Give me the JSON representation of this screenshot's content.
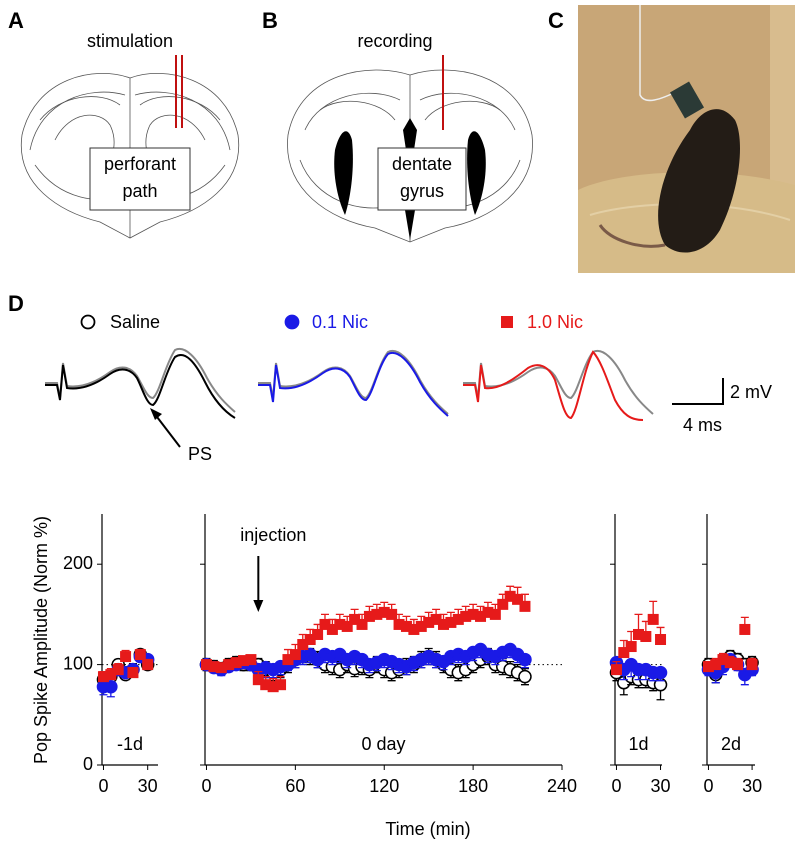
{
  "panels": {
    "a": {
      "letter": "A",
      "label": "stimulation",
      "box": [
        "perforant",
        "path"
      ]
    },
    "b": {
      "letter": "B",
      "label": "recording",
      "box": [
        "dentate",
        "gyrus"
      ]
    },
    "c": {
      "letter": "C"
    },
    "d": {
      "letter": "D",
      "trace_label": "PS",
      "scale_y": "2 mV",
      "scale_x": "4 ms"
    }
  },
  "figure": {
    "ylabel": "Pop Spike Amplitude (Norm %)",
    "xlabel": "Time (min)"
  },
  "chart_data": [
    {
      "type": "scatter",
      "label": "-1d",
      "xlim": [
        -1,
        37
      ],
      "xticks": [
        0,
        30
      ],
      "ylim": [
        0,
        250
      ],
      "yticks": [
        0,
        100,
        200
      ],
      "ref_line": 100,
      "x": [
        0,
        5,
        10,
        15,
        20,
        25,
        30
      ],
      "series": [
        {
          "name": "Saline",
          "color": "#000000",
          "marker": "circle-open",
          "error_dir": "both",
          "values": [
            85,
            88,
            100,
            90,
            95,
            110,
            100
          ],
          "errors": [
            6,
            6,
            5,
            5,
            6,
            5,
            5
          ]
        },
        {
          "name": "0.1 Nic",
          "color": "#1a1ae6",
          "marker": "circle",
          "error_dir": "down",
          "values": [
            78,
            78,
            95,
            92,
            95,
            108,
            105
          ],
          "errors": [
            8,
            10,
            6,
            5,
            6,
            5,
            5
          ]
        },
        {
          "name": "1.0 Nic",
          "color": "#e61a1a",
          "marker": "square",
          "error_dir": "up",
          "values": [
            88,
            90,
            95,
            108,
            92,
            110,
            100
          ],
          "errors": [
            5,
            6,
            6,
            6,
            5,
            5,
            5
          ]
        }
      ]
    },
    {
      "type": "scatter",
      "label": "0 day",
      "xlim": [
        -1,
        240
      ],
      "xticks": [
        0,
        60,
        120,
        180,
        240
      ],
      "ylim": [
        0,
        250
      ],
      "ref_line": 100,
      "annotation": {
        "text": "injection",
        "x": 35
      },
      "x": [
        0,
        5,
        10,
        15,
        20,
        25,
        30,
        35,
        40,
        45,
        50,
        55,
        60,
        65,
        70,
        75,
        80,
        85,
        90,
        95,
        100,
        105,
        110,
        115,
        120,
        125,
        130,
        135,
        140,
        145,
        150,
        155,
        160,
        165,
        170,
        175,
        180,
        185,
        190,
        195,
        200,
        205,
        210,
        215
      ],
      "series": [
        {
          "name": "Saline",
          "color": "#000000",
          "marker": "circle-open",
          "error_dir": "both",
          "values": [
            100,
            98,
            96,
            100,
            102,
            100,
            100,
            100,
            95,
            92,
            95,
            100,
            105,
            110,
            108,
            105,
            100,
            98,
            95,
            100,
            96,
            98,
            95,
            100,
            95,
            92,
            95,
            98,
            100,
            105,
            108,
            105,
            100,
            95,
            92,
            95,
            100,
            105,
            108,
            100,
            98,
            95,
            92,
            88
          ],
          "errors": [
            6,
            6,
            6,
            6,
            6,
            6,
            6,
            6,
            8,
            8,
            8,
            8,
            8,
            8,
            8,
            8,
            8,
            8,
            8,
            8,
            8,
            8,
            8,
            8,
            8,
            8,
            8,
            8,
            8,
            8,
            8,
            8,
            8,
            8,
            8,
            8,
            8,
            8,
            8,
            8,
            8,
            8,
            8,
            8
          ]
        },
        {
          "name": "0.1 Nic",
          "color": "#1a1ae6",
          "marker": "circle",
          "error_dir": "down",
          "values": [
            100,
            97,
            95,
            98,
            100,
            102,
            100,
            95,
            97,
            95,
            98,
            100,
            105,
            108,
            110,
            105,
            110,
            108,
            110,
            105,
            108,
            105,
            100,
            102,
            105,
            103,
            100,
            98,
            102,
            105,
            108,
            105,
            103,
            108,
            110,
            108,
            112,
            115,
            110,
            108,
            112,
            115,
            110,
            105
          ],
          "errors": [
            5,
            5,
            6,
            5,
            5,
            5,
            5,
            8,
            10,
            8,
            8,
            6,
            8,
            8,
            8,
            8,
            8,
            8,
            8,
            8,
            8,
            8,
            8,
            8,
            8,
            8,
            8,
            8,
            8,
            8,
            8,
            8,
            8,
            8,
            8,
            8,
            8,
            8,
            8,
            8,
            8,
            8,
            8,
            8
          ]
        },
        {
          "name": "1.0 Nic",
          "color": "#e61a1a",
          "marker": "square",
          "error_dir": "up",
          "values": [
            100,
            98,
            97,
            100,
            102,
            104,
            105,
            85,
            80,
            78,
            80,
            105,
            110,
            120,
            125,
            130,
            140,
            135,
            140,
            138,
            145,
            140,
            148,
            150,
            152,
            150,
            140,
            138,
            135,
            138,
            142,
            145,
            140,
            142,
            145,
            148,
            150,
            148,
            152,
            150,
            160,
            168,
            165,
            158
          ],
          "errors": [
            4,
            4,
            4,
            4,
            4,
            4,
            4,
            8,
            8,
            8,
            8,
            10,
            10,
            10,
            10,
            10,
            10,
            10,
            10,
            10,
            10,
            10,
            10,
            10,
            10,
            10,
            10,
            10,
            10,
            10,
            10,
            10,
            10,
            10,
            10,
            10,
            10,
            10,
            10,
            10,
            10,
            10,
            12,
            12
          ]
        }
      ]
    },
    {
      "type": "scatter",
      "label": "1d",
      "xlim": [
        -1,
        31
      ],
      "xticks": [
        0,
        30
      ],
      "ylim": [
        0,
        250
      ],
      "ref_line": 100,
      "x": [
        0,
        5,
        10,
        15,
        20,
        25,
        30
      ],
      "series": [
        {
          "name": "Saline",
          "color": "#000000",
          "marker": "circle-open",
          "error_dir": "both",
          "values": [
            92,
            82,
            88,
            85,
            85,
            82,
            80
          ],
          "errors": [
            8,
            12,
            8,
            8,
            8,
            8,
            15
          ]
        },
        {
          "name": "0.1 Nic",
          "color": "#1a1ae6",
          "marker": "circle",
          "error_dir": "down",
          "values": [
            102,
            95,
            100,
            95,
            95,
            92,
            92
          ],
          "errors": [
            8,
            10,
            12,
            10,
            10,
            8,
            8
          ]
        },
        {
          "name": "1.0 Nic",
          "color": "#e61a1a",
          "marker": "square",
          "error_dir": "up",
          "values": [
            95,
            112,
            118,
            130,
            128,
            145,
            125
          ],
          "errors": [
            8,
            12,
            15,
            20,
            15,
            18,
            12
          ]
        }
      ]
    },
    {
      "type": "scatter",
      "label": "2d",
      "xlim": [
        -1,
        32
      ],
      "xticks": [
        0,
        30
      ],
      "ylim": [
        0,
        250
      ],
      "ref_line": 100,
      "x": [
        0,
        5,
        10,
        15,
        20,
        25,
        30
      ],
      "series": [
        {
          "name": "Saline",
          "color": "#000000",
          "marker": "circle-open",
          "error_dir": "both",
          "values": [
            100,
            90,
            100,
            108,
            105,
            100,
            102
          ],
          "errors": [
            6,
            8,
            6,
            6,
            6,
            6,
            6
          ]
        },
        {
          "name": "0.1 Nic",
          "color": "#1a1ae6",
          "marker": "circle",
          "error_dir": "down",
          "values": [
            95,
            92,
            98,
            105,
            100,
            90,
            95
          ],
          "errors": [
            6,
            10,
            8,
            6,
            6,
            10,
            6
          ]
        },
        {
          "name": "1.0 Nic",
          "color": "#e61a1a",
          "marker": "square",
          "error_dir": "up",
          "values": [
            98,
            100,
            105,
            102,
            100,
            135,
            100
          ],
          "errors": [
            5,
            6,
            6,
            6,
            6,
            12,
            6
          ]
        }
      ]
    }
  ]
}
